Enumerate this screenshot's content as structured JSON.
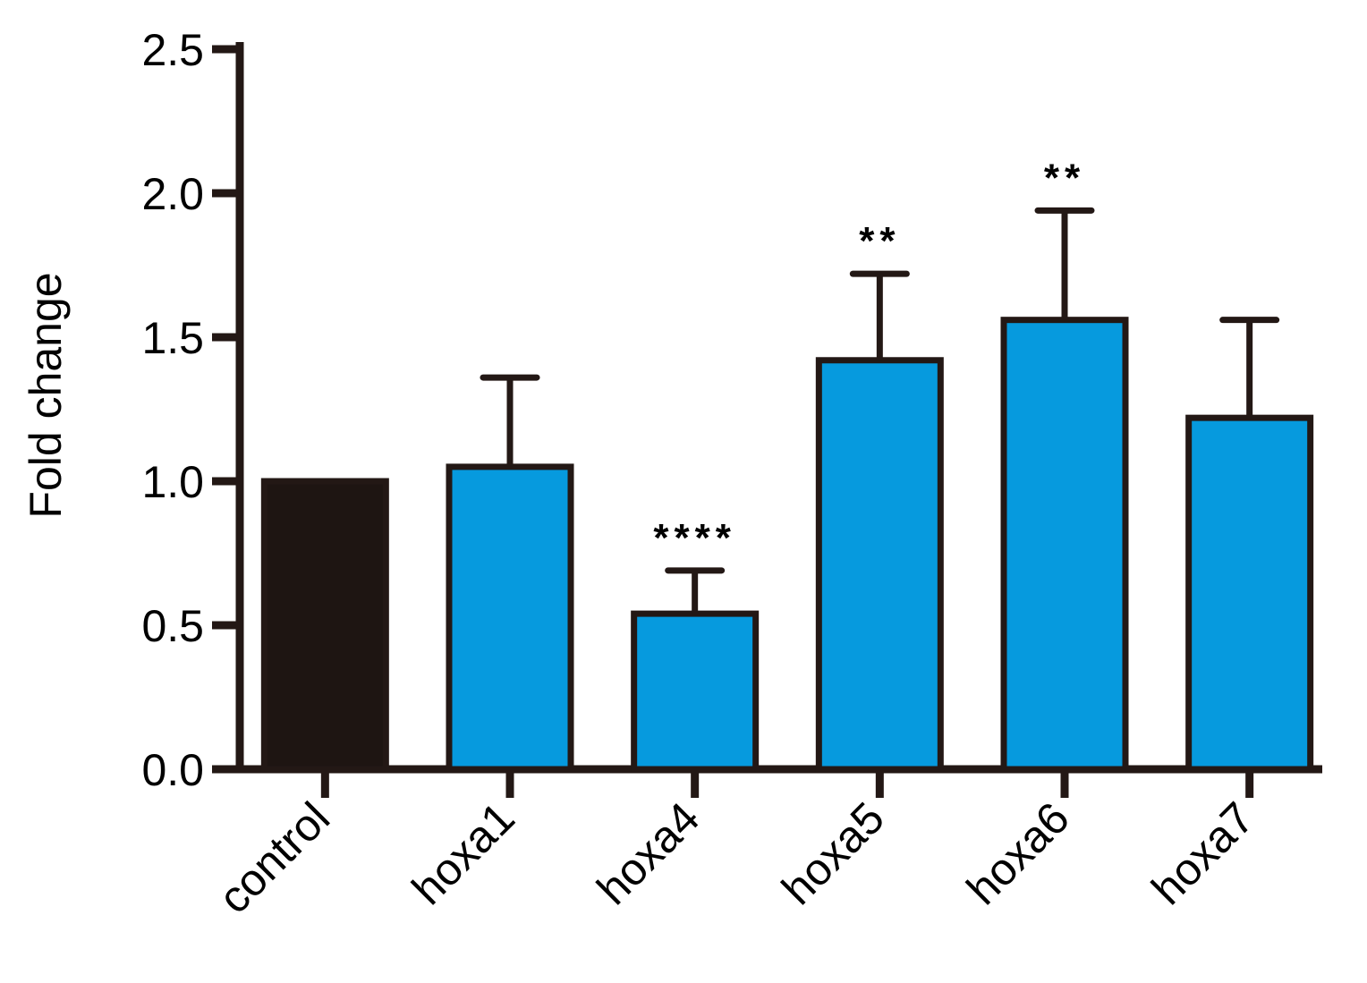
{
  "chart_data": {
    "type": "bar",
    "ylabel": "Fold change",
    "xlabel": "",
    "ylim": [
      0,
      2.5
    ],
    "yticks": [
      "0.0",
      "0.5",
      "1.0",
      "1.5",
      "2.0",
      "2.5"
    ],
    "categories": [
      "control",
      "hoxa1",
      "hoxa4",
      "hoxa5",
      "hoxa6",
      "hoxa7"
    ],
    "values": [
      1.0,
      1.05,
      0.54,
      1.42,
      1.56,
      1.22
    ],
    "error_upper": [
      0,
      0.31,
      0.15,
      0.3,
      0.38,
      0.34
    ],
    "significance": [
      "",
      "",
      "****",
      "**",
      "**",
      ""
    ],
    "bar_colors": [
      "#1e1512",
      "#069ade",
      "#069ade",
      "#069ade",
      "#069ade",
      "#069ade"
    ],
    "grid": false,
    "legend": "none"
  }
}
